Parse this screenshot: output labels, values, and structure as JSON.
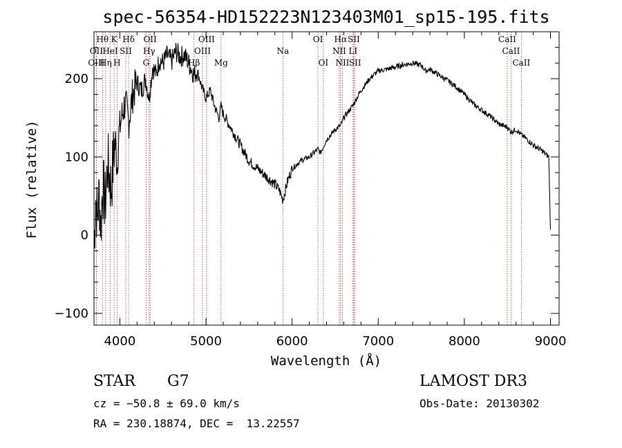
{
  "chart_data": {
    "type": "line",
    "title": "spec-56354-HD152223N123403M01_sp15-195.fits",
    "xlabel": "Wavelength (Å)",
    "ylabel": "Flux (relative)",
    "xlim": [
      3700,
      9100
    ],
    "ylim": [
      -115,
      260
    ],
    "xticks": [
      4000,
      5000,
      6000,
      7000,
      8000,
      9000
    ],
    "yticks": [
      -100,
      0,
      100,
      200
    ],
    "series": [
      {
        "name": "flux",
        "x": [
          3700,
          3720,
          3740,
          3760,
          3780,
          3800,
          3830,
          3860,
          3900,
          3933,
          3950,
          3968,
          3990,
          4020,
          4060,
          4102,
          4150,
          4200,
          4250,
          4300,
          4340,
          4380,
          4420,
          4460,
          4500,
          4550,
          4600,
          4650,
          4700,
          4750,
          4800,
          4861,
          4900,
          4950,
          5000,
          5050,
          5100,
          5150,
          5175,
          5200,
          5300,
          5400,
          5500,
          5600,
          5700,
          5800,
          5850,
          5893,
          5950,
          6000,
          6100,
          6200,
          6300,
          6330,
          6400,
          6500,
          6563,
          6600,
          6700,
          6800,
          6900,
          7000,
          7100,
          7200,
          7300,
          7400,
          7500,
          7550,
          7600,
          7700,
          7800,
          7900,
          8000,
          8100,
          8200,
          8300,
          8400,
          8500,
          8542,
          8600,
          8662,
          8700,
          8800,
          8900,
          8980,
          9000
        ],
        "y": [
          -15,
          50,
          20,
          55,
          10,
          65,
          40,
          90,
          60,
          110,
          120,
          85,
          130,
          150,
          170,
          145,
          180,
          195,
          185,
          200,
          175,
          215,
          205,
          225,
          220,
          230,
          222,
          235,
          228,
          230,
          220,
          205,
          210,
          190,
          175,
          185,
          165,
          150,
          165,
          155,
          135,
          115,
          95,
          85,
          75,
          65,
          58,
          45,
          70,
          85,
          95,
          100,
          110,
          105,
          122,
          135,
          140,
          150,
          165,
          185,
          200,
          210,
          212,
          215,
          218,
          220,
          217,
          210,
          212,
          205,
          198,
          190,
          180,
          168,
          160,
          152,
          142,
          138,
          132,
          135,
          128,
          125,
          115,
          108,
          100,
          5
        ]
      }
    ],
    "spectral_lines": [
      {
        "name": "Hθ",
        "wavelength": 3798,
        "row": 0
      },
      {
        "name": "K",
        "wavelength": 3934,
        "row": 0
      },
      {
        "name": "Hδ",
        "wavelength": 4102,
        "row": 0
      },
      {
        "name": "OII",
        "wavelength": 4351,
        "row": 0
      },
      {
        "name": "OIII",
        "wavelength": 5007,
        "row": 0
      },
      {
        "name": "OI",
        "wavelength": 6300,
        "row": 0
      },
      {
        "name": "Hα",
        "wavelength": 6563,
        "row": 0
      },
      {
        "name": "SII",
        "wavelength": 6716,
        "row": 0
      },
      {
        "name": "CaII",
        "wavelength": 8498,
        "row": 0
      },
      {
        "name": "OII",
        "wavelength": 3727,
        "row": 1
      },
      {
        "name": "HeI",
        "wavelength": 3889,
        "row": 1
      },
      {
        "name": "SII",
        "wavelength": 4069,
        "row": 1
      },
      {
        "name": "Hγ",
        "wavelength": 4340,
        "row": 1
      },
      {
        "name": "OIII",
        "wavelength": 4959,
        "row": 1
      },
      {
        "name": "Na",
        "wavelength": 5893,
        "row": 1
      },
      {
        "name": "NII",
        "wavelength": 6548,
        "row": 1
      },
      {
        "name": "LI",
        "wavelength": 6708,
        "row": 1
      },
      {
        "name": "CaII",
        "wavelength": 8542,
        "row": 1
      },
      {
        "name": "OIII",
        "wavelength": 3727,
        "row": 2
      },
      {
        "name": "Hη",
        "wavelength": 3835,
        "row": 2
      },
      {
        "name": "H",
        "wavelength": 3968,
        "row": 2
      },
      {
        "name": "G",
        "wavelength": 4305,
        "row": 2
      },
      {
        "name": "Hβ",
        "wavelength": 4861,
        "row": 2
      },
      {
        "name": "Mg",
        "wavelength": 5175,
        "row": 2
      },
      {
        "name": "OI",
        "wavelength": 6363,
        "row": 2
      },
      {
        "name": "NII",
        "wavelength": 6584,
        "row": 2
      },
      {
        "name": "SII",
        "wavelength": 6731,
        "row": 2
      },
      {
        "name": "CaII",
        "wavelength": 8662,
        "row": 2
      }
    ],
    "line_color": "#000000",
    "marker_color": "#b03030"
  },
  "info": {
    "class_label": "STAR",
    "subclass": "G7",
    "survey": "LAMOST DR3",
    "redshift_text": "cz = −50.8 ± 69.0 km/s",
    "obs_date": "Obs-Date: 20130302",
    "coords": "RA = 230.18874, DEC =  13.22557"
  }
}
